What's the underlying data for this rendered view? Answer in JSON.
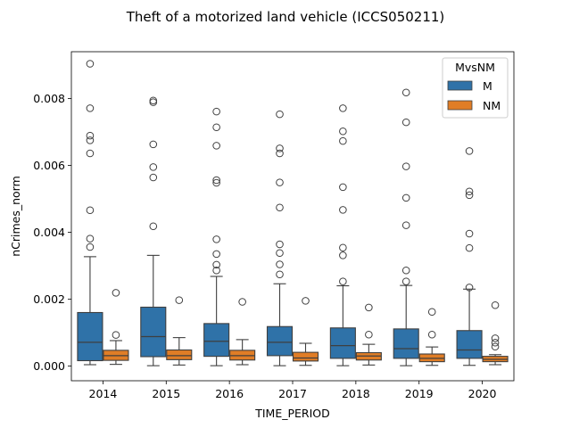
{
  "chart_data": {
    "type": "boxplot",
    "title": "Theft of a motorized land vehicle (ICCS050211)",
    "xlabel": "TIME_PERIOD",
    "ylabel": "nCrimes_norm",
    "ylim": [
      -0.00044,
      0.0094
    ],
    "yticks": [
      0.0,
      0.002,
      0.004,
      0.006,
      0.008
    ],
    "ytick_labels": [
      "0.000",
      "0.002",
      "0.004",
      "0.006",
      "0.008"
    ],
    "grid": false,
    "legend": {
      "title": "MvsNM",
      "placement": "top-right"
    },
    "categories": [
      "2014",
      "2015",
      "2016",
      "2017",
      "2018",
      "2019",
      "2020"
    ],
    "series": [
      {
        "name": "M",
        "color": "#2f72a8",
        "boxes": [
          {
            "whisker_low": 4e-05,
            "q1": 0.00016,
            "median": 0.00071,
            "q3": 0.0016,
            "whisker_high": 0.00327,
            "outliers": [
              0.00904,
              0.00771,
              0.00689,
              0.00675,
              0.00636,
              0.00466,
              0.00381,
              0.00356
            ]
          },
          {
            "whisker_low": 1e-05,
            "q1": 0.00028,
            "median": 0.00088,
            "q3": 0.00176,
            "whisker_high": 0.00331,
            "outliers": [
              0.00794,
              0.00789,
              0.00663,
              0.00595,
              0.00564,
              0.00418
            ]
          },
          {
            "whisker_low": 1e-05,
            "q1": 0.00029,
            "median": 0.00074,
            "q3": 0.00127,
            "whisker_high": 0.00268,
            "outliers": [
              0.00761,
              0.00714,
              0.00659,
              0.00556,
              0.00548,
              0.00379,
              0.00335,
              0.00303,
              0.00286
            ]
          },
          {
            "whisker_low": 1e-05,
            "q1": 0.00031,
            "median": 0.00071,
            "q3": 0.00118,
            "whisker_high": 0.00246,
            "outliers": [
              0.00753,
              0.00651,
              0.00636,
              0.00549,
              0.00474,
              0.00364,
              0.00338,
              0.00304,
              0.00274
            ]
          },
          {
            "whisker_low": 1e-05,
            "q1": 0.00023,
            "median": 0.00061,
            "q3": 0.00114,
            "whisker_high": 0.0024,
            "outliers": [
              0.00771,
              0.00702,
              0.00673,
              0.00535,
              0.00467,
              0.00354,
              0.00331,
              0.00253
            ]
          },
          {
            "whisker_low": 1e-05,
            "q1": 0.00023,
            "median": 0.00052,
            "q3": 0.00111,
            "whisker_high": 0.00241,
            "outliers": [
              0.00818,
              0.00729,
              0.00597,
              0.00503,
              0.00421,
              0.00286,
              0.00253
            ]
          },
          {
            "whisker_low": 2e-05,
            "q1": 0.00023,
            "median": 0.00048,
            "q3": 0.00106,
            "whisker_high": 0.0023,
            "outliers": [
              0.00643,
              0.00522,
              0.00511,
              0.00396,
              0.00353,
              0.00235
            ]
          }
        ]
      },
      {
        "name": "NM",
        "color": "#e07d26",
        "boxes": [
          {
            "whisker_low": 5e-05,
            "q1": 0.00017,
            "median": 0.00031,
            "q3": 0.00047,
            "whisker_high": 0.00076,
            "outliers": [
              0.00219,
              0.00093
            ]
          },
          {
            "whisker_low": 3e-05,
            "q1": 0.00019,
            "median": 0.00031,
            "q3": 0.00048,
            "whisker_high": 0.00085,
            "outliers": [
              0.00197
            ]
          },
          {
            "whisker_low": 4e-05,
            "q1": 0.00018,
            "median": 0.00031,
            "q3": 0.00047,
            "whisker_high": 0.00079,
            "outliers": [
              0.00192
            ]
          },
          {
            "whisker_low": 2e-05,
            "q1": 0.00015,
            "median": 0.00024,
            "q3": 0.00041,
            "whisker_high": 0.00068,
            "outliers": [
              0.00195
            ]
          },
          {
            "whisker_low": 3e-05,
            "q1": 0.00018,
            "median": 0.0003,
            "q3": 0.0004,
            "whisker_high": 0.00065,
            "outliers": [
              0.00175,
              0.00094
            ]
          },
          {
            "whisker_low": 2e-05,
            "q1": 0.00013,
            "median": 0.00023,
            "q3": 0.00036,
            "whisker_high": 0.00057,
            "outliers": [
              0.00162,
              0.00094
            ]
          },
          {
            "whisker_low": 4e-05,
            "q1": 0.00013,
            "median": 0.0002,
            "q3": 0.00029,
            "whisker_high": 0.00034,
            "outliers": [
              0.00182,
              0.00083,
              0.0007,
              0.00058
            ]
          }
        ]
      }
    ]
  }
}
